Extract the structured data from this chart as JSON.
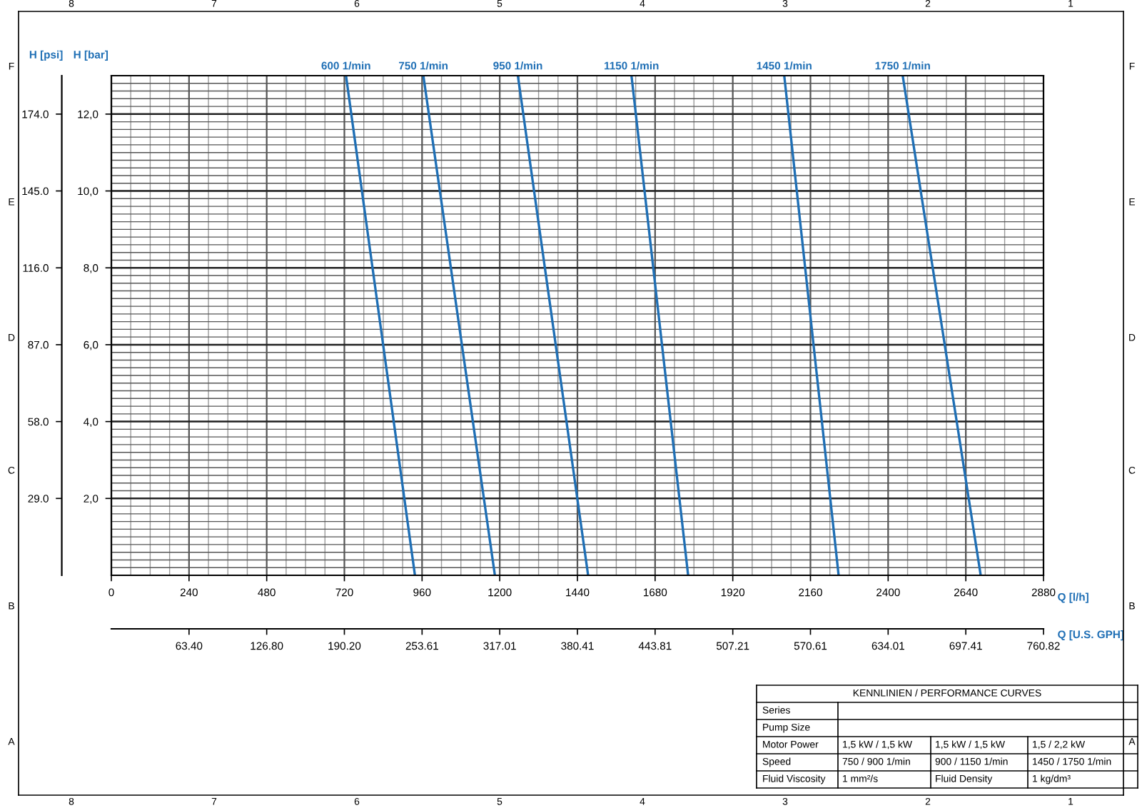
{
  "chart_data": {
    "type": "line",
    "series": [
      {
        "name": "600 1/min",
        "color": "#1f6fb5",
        "x": [
          725,
          938
        ],
        "values": [
          13,
          0
        ]
      },
      {
        "name": "750 1/min",
        "color": "#1f6fb5",
        "x": [
          964,
          1185
        ],
        "values": [
          13,
          0
        ]
      },
      {
        "name": "950 1/min",
        "color": "#1f6fb5",
        "x": [
          1256,
          1473
        ],
        "values": [
          13,
          0
        ]
      },
      {
        "name": "1150 1/min",
        "color": "#1f6fb5",
        "x": [
          1607,
          1782
        ],
        "values": [
          13,
          0
        ]
      },
      {
        "name": "1450 1/min",
        "color": "#1f6fb5",
        "x": [
          2079,
          2247
        ],
        "values": [
          13,
          0
        ]
      },
      {
        "name": "1750 1/min",
        "color": "#1f6fb5",
        "x": [
          2445,
          2686
        ],
        "values": [
          13,
          0
        ]
      }
    ],
    "xlabel": "Q [l/h]",
    "ylabel": "H [bar]",
    "y2label": "H [psi]",
    "x2label": "Q [U.S. GPH]",
    "xlim": [
      0,
      2880
    ],
    "xticks": [
      0,
      240,
      480,
      720,
      960,
      1200,
      1440,
      1680,
      1920,
      2160,
      2400,
      2640,
      2880
    ],
    "ylim": [
      0,
      13
    ],
    "yticks": [
      {
        "value": 2,
        "label": "2,0"
      },
      {
        "value": 4,
        "label": "4,0"
      },
      {
        "value": 6,
        "label": "6,0"
      },
      {
        "value": 8,
        "label": "8,0"
      },
      {
        "value": 10,
        "label": "10,0"
      },
      {
        "value": 12,
        "label": "12,0"
      }
    ],
    "y2lim": [
      0,
      188.5
    ],
    "y2ticks": [
      {
        "value": 29,
        "label": "29.0"
      },
      {
        "value": 58,
        "label": "58.0"
      },
      {
        "value": 87,
        "label": "87.0"
      },
      {
        "value": 116,
        "label": "116.0"
      },
      {
        "value": 145,
        "label": "145.0"
      },
      {
        "value": 174,
        "label": "174.0"
      }
    ],
    "x2lim": [
      0,
      760.82
    ],
    "x2ticks": [
      {
        "value": 63.4,
        "label": "63.40"
      },
      {
        "value": 126.8,
        "label": "126.80"
      },
      {
        "value": 190.2,
        "label": "190.20"
      },
      253.61,
      317.01,
      380.41,
      443.81,
      507.21,
      570.61,
      634.01,
      697.41,
      760.82
    ],
    "grid": true,
    "legend": false,
    "marker": "none",
    "line_style": "solid",
    "annotations": [
      "KENNLINIEN / PERFORMANCE CURVES",
      "Series",
      "Pump Size",
      "Motor Power",
      "1,5 kW / 1,5 kW",
      "1,5 kW / 1,5 kW",
      "1,5 / 2,2 kW",
      "Speed",
      "750 / 900 1/min",
      "900 / 1150 1/min",
      "1450 / 1750 1/min",
      "Fluid Viscosity",
      "1 mm²/s",
      "Fluid Density",
      "1 kg/dm³",
      "F",
      "E",
      "D",
      "C",
      "B",
      "A",
      "8",
      "7",
      "6",
      "5",
      "4",
      "3",
      "2",
      "1"
    ]
  }
}
